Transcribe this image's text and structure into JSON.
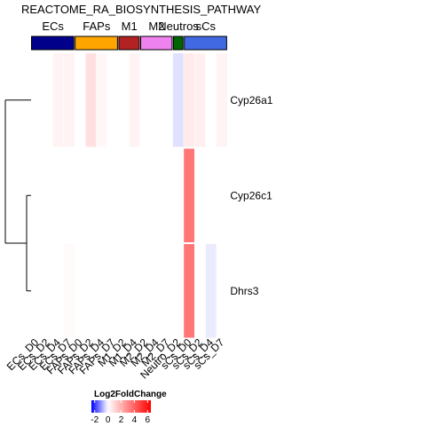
{
  "chart_data": {
    "type": "heatmap",
    "title": "REACTOME_RA_BIOSYNTHESIS_PATHWAY",
    "rows": [
      "Cyp26a1",
      "Cyp26c1",
      "Dhrs3"
    ],
    "columns": [
      "ECs_D0",
      "ECs_D2",
      "ECs_D4",
      "ECs_D7",
      "FAPs_D0",
      "FAPs_D2",
      "FAPs_D4",
      "FAPs_D7",
      "M1_D2",
      "M1_D4",
      "M2_D2",
      "M2_D4",
      "M2_D7",
      "Neutro_D2",
      "sCs_D0",
      "sCs_D2",
      "sCs_D4",
      "sCs_D7"
    ],
    "groups": [
      {
        "name": "ECs",
        "color": "#00008B",
        "count": 4
      },
      {
        "name": "FAPs",
        "color": "#FFA500",
        "count": 4
      },
      {
        "name": "M1",
        "color": "#B22222",
        "count": 2
      },
      {
        "name": "M2",
        "color": "#EE82EE",
        "count": 3
      },
      {
        "name": "Neutros",
        "color": "#006400",
        "count": 1
      },
      {
        "name": "sCs",
        "color": "#4169E1",
        "count": 4
      }
    ],
    "values": [
      [
        0,
        0,
        0.3,
        0.3,
        0,
        0.8,
        0.2,
        0,
        0,
        0.3,
        0,
        0,
        0,
        -0.3,
        0.5,
        0.4,
        0,
        0.3
      ],
      [
        0,
        0,
        0,
        0,
        0,
        0,
        0,
        0,
        0,
        0,
        0,
        0,
        0,
        0,
        3.5,
        0,
        0,
        0
      ],
      [
        0,
        0,
        0,
        0.1,
        0,
        0,
        0,
        0,
        0,
        0,
        0,
        0,
        0,
        0,
        3.5,
        0,
        -0.2,
        0
      ]
    ],
    "legend": {
      "title": "Log2FoldChange",
      "ticks": [
        -2,
        0,
        2,
        4,
        6
      ],
      "range": [
        -2.5,
        6.5
      ],
      "placement": "bottom-left"
    },
    "row_dendrogram": true
  },
  "colors": {
    "low": "#0000FF",
    "mid": "#FFFFFF",
    "high": "#FF0000"
  }
}
